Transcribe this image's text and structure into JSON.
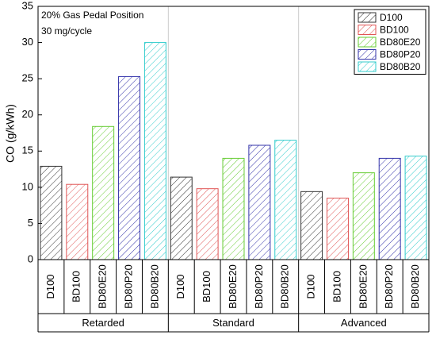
{
  "chart_data": {
    "type": "bar",
    "annotations": [
      "20% Gas Pedal Position",
      "30 mg/cycle"
    ],
    "y_label": "CO (g/kWh)",
    "categories": [
      "Retarded",
      "Standard",
      "Advanced"
    ],
    "series": [
      {
        "name": "D100",
        "color": "#333333",
        "values": [
          12.9,
          11.4,
          9.4
        ]
      },
      {
        "name": "BD100",
        "color": "#e05555",
        "values": [
          10.4,
          9.8,
          8.5
        ]
      },
      {
        "name": "BD80E20",
        "color": "#66cc33",
        "values": [
          18.4,
          14.0,
          12.0
        ]
      },
      {
        "name": "BD80P20",
        "color": "#3333aa",
        "values": [
          25.3,
          15.8,
          14.0
        ]
      },
      {
        "name": "BD80B20",
        "color": "#33cccc",
        "values": [
          30.0,
          16.5,
          14.3
        ]
      }
    ],
    "ylim": [
      0,
      35
    ],
    "yticks": [
      0,
      5,
      10,
      15,
      20,
      25,
      30,
      35
    ],
    "legend": "upper right",
    "hatch": true
  }
}
